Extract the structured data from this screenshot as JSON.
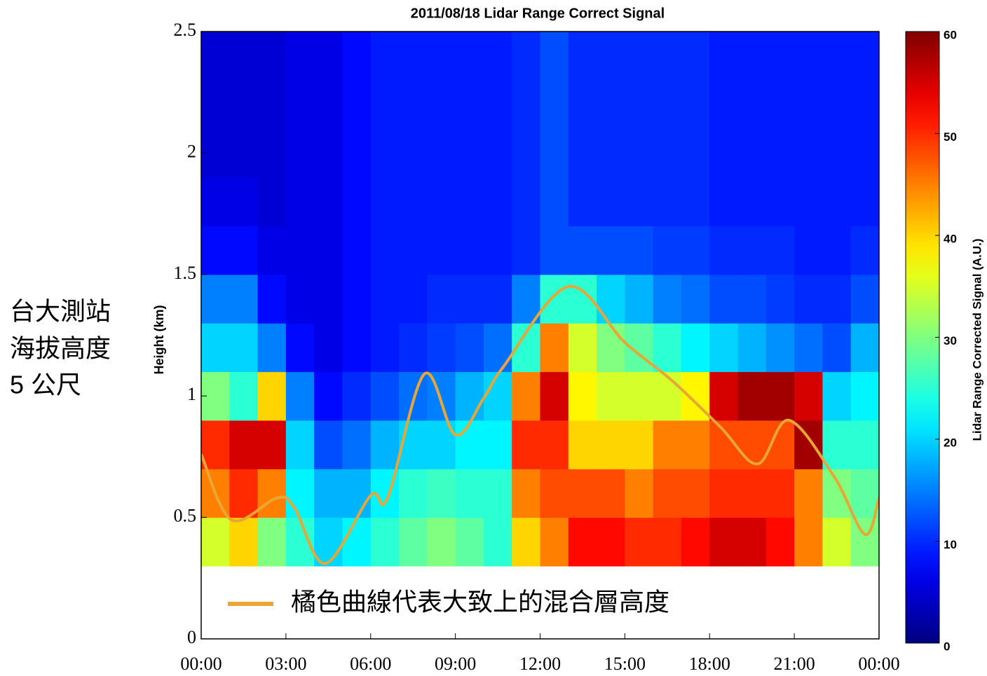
{
  "chart_data": {
    "type": "heatmap",
    "title": "2011/08/18 Lidar Range Correct Signal",
    "y_label": "Height (km)",
    "annotation": [
      "台大測站",
      "海拔高度",
      "5 公尺"
    ],
    "colormap": "jet",
    "xlim": [
      0,
      24
    ],
    "xticks": [
      {
        "value": 0,
        "label": "00:00"
      },
      {
        "value": 3,
        "label": "03:00"
      },
      {
        "value": 6,
        "label": "06:00"
      },
      {
        "value": 9,
        "label": "09:00"
      },
      {
        "value": 12,
        "label": "12:00"
      },
      {
        "value": 15,
        "label": "15:00"
      },
      {
        "value": 18,
        "label": "18:00"
      },
      {
        "value": 21,
        "label": "21:00"
      },
      {
        "value": 24,
        "label": "00:00"
      }
    ],
    "ylim": [
      0,
      2.5
    ],
    "yticks": [
      0,
      0.5,
      1,
      1.5,
      2,
      2.5
    ],
    "x_edges": [
      0,
      1,
      2,
      3,
      4,
      5,
      6,
      7,
      8,
      9,
      10,
      11,
      12,
      13,
      14,
      15,
      16,
      17,
      18,
      19,
      20,
      21,
      22,
      23,
      24
    ],
    "y_edges": [
      0.3,
      0.5,
      0.7,
      0.9,
      1.1,
      1.3,
      1.5,
      1.7,
      1.9,
      2.1,
      2.3,
      2.5
    ],
    "z": [
      [
        35,
        45,
        50,
        30,
        20,
        15,
        8,
        6,
        5,
        5,
        5
      ],
      [
        40,
        50,
        55,
        25,
        20,
        15,
        8,
        6,
        5,
        5,
        5
      ],
      [
        30,
        45,
        55,
        40,
        15,
        8,
        6,
        5,
        5,
        5,
        5
      ],
      [
        25,
        22,
        20,
        15,
        8,
        6,
        6,
        6,
        6,
        6,
        6
      ],
      [
        20,
        18,
        12,
        8,
        6,
        6,
        6,
        6,
        6,
        6,
        6
      ],
      [
        22,
        18,
        14,
        10,
        8,
        8,
        8,
        8,
        8,
        8,
        8
      ],
      [
        25,
        22,
        18,
        12,
        9,
        9,
        9,
        9,
        9,
        9,
        9
      ],
      [
        28,
        25,
        20,
        14,
        10,
        9,
        9,
        9,
        9,
        9,
        9
      ],
      [
        30,
        26,
        20,
        15,
        11,
        10,
        9,
        9,
        9,
        9,
        9
      ],
      [
        28,
        25,
        22,
        18,
        12,
        10,
        9,
        9,
        9,
        9,
        9
      ],
      [
        25,
        25,
        22,
        20,
        14,
        10,
        9,
        9,
        9,
        9,
        9
      ],
      [
        40,
        45,
        50,
        45,
        25,
        15,
        10,
        10,
        10,
        10,
        10
      ],
      [
        45,
        48,
        50,
        55,
        45,
        25,
        12,
        12,
        12,
        12,
        12
      ],
      [
        52,
        48,
        40,
        38,
        35,
        25,
        12,
        10,
        10,
        10,
        10
      ],
      [
        52,
        48,
        40,
        35,
        30,
        20,
        12,
        10,
        10,
        10,
        10
      ],
      [
        50,
        45,
        40,
        35,
        28,
        18,
        12,
        10,
        10,
        10,
        10
      ],
      [
        50,
        48,
        45,
        35,
        25,
        15,
        11,
        10,
        10,
        10,
        10
      ],
      [
        52,
        48,
        45,
        38,
        22,
        14,
        11,
        10,
        10,
        10,
        10
      ],
      [
        55,
        50,
        48,
        55,
        20,
        12,
        10,
        9,
        9,
        9,
        9
      ],
      [
        55,
        50,
        48,
        58,
        18,
        12,
        10,
        9,
        9,
        9,
        9
      ],
      [
        52,
        50,
        48,
        58,
        16,
        11,
        10,
        9,
        9,
        9,
        9
      ],
      [
        45,
        45,
        58,
        55,
        14,
        10,
        9,
        9,
        9,
        9,
        9
      ],
      [
        35,
        30,
        25,
        20,
        12,
        10,
        9,
        9,
        9,
        9,
        9
      ],
      [
        30,
        28,
        25,
        22,
        18,
        12,
        10,
        9,
        9,
        9,
        9
      ]
    ],
    "series": [
      {
        "name": "橘色曲線代表大致上的混合層高度",
        "color": "#e8a735",
        "x": [
          0,
          1.07,
          2.68,
          3.3,
          4.4,
          6.0,
          6.6,
          7.9,
          9.0,
          10.0,
          10.7,
          13.0,
          15.0,
          16.7,
          18.4,
          19.7,
          20.8,
          22.4,
          23.5,
          24
        ],
        "values": [
          0.76,
          0.49,
          0.58,
          0.54,
          0.31,
          0.59,
          0.58,
          1.09,
          0.84,
          0.99,
          1.12,
          1.45,
          1.22,
          1.06,
          0.87,
          0.72,
          0.9,
          0.67,
          0.43,
          0.58
        ]
      }
    ],
    "colorbar": {
      "label": "Lidar Range Corrected Signal (A.U.)",
      "lim": [
        0,
        60
      ],
      "ticks": [
        0,
        10,
        20,
        30,
        40,
        50,
        60
      ]
    }
  }
}
